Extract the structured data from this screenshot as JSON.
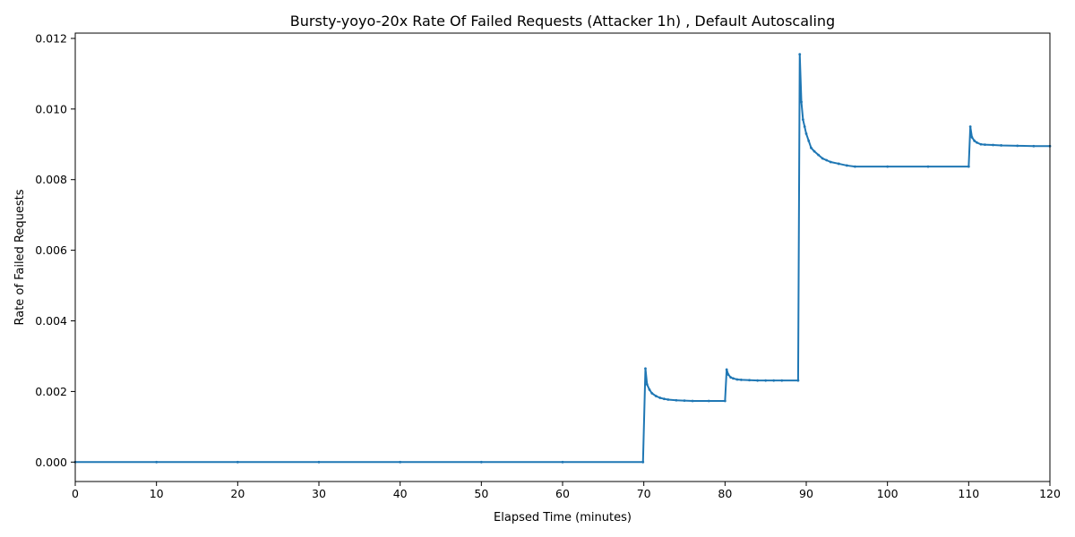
{
  "chart_data": {
    "type": "line",
    "title": "Bursty-yoyo-20x Rate Of Failed Requests (Attacker 1h) , Default Autoscaling",
    "xlabel": "Elapsed Time (minutes)",
    "ylabel": "Rate of Failed Requests",
    "xlim": [
      0,
      120
    ],
    "ylim": [
      -0.00055,
      0.01215
    ],
    "xticks": [
      0,
      10,
      20,
      30,
      40,
      50,
      60,
      70,
      80,
      90,
      100,
      110,
      120
    ],
    "yticks": [
      0.0,
      0.002,
      0.004,
      0.006,
      0.008,
      0.01,
      0.012
    ],
    "xtick_labels": [
      "0",
      "10",
      "20",
      "30",
      "40",
      "50",
      "60",
      "70",
      "80",
      "90",
      "100",
      "110",
      "120"
    ],
    "ytick_labels": [
      "0.000",
      "0.002",
      "0.004",
      "0.006",
      "0.008",
      "0.010",
      "0.012"
    ],
    "grid": false,
    "series": [
      {
        "color": "#1f77b4",
        "x": [
          0,
          10,
          20,
          30,
          40,
          50,
          60,
          69.9,
          70.2,
          70.4,
          70.7,
          71.0,
          71.5,
          72.0,
          72.5,
          73.0,
          74.0,
          75.0,
          76.0,
          78.0,
          80.0,
          80.2,
          80.4,
          80.7,
          81.0,
          81.5,
          82.0,
          83.0,
          84.0,
          85.0,
          86.0,
          87.0,
          89.0,
          89.2,
          89.4,
          89.6,
          89.8,
          90.0,
          90.3,
          90.6,
          91.0,
          91.5,
          92.0,
          92.5,
          93.0,
          94.0,
          95.0,
          96.0,
          100.0,
          105.0,
          110.0,
          110.2,
          110.4,
          110.7,
          111.0,
          111.5,
          112.0,
          113.0,
          114.0,
          116.0,
          118.0,
          120.0
        ],
        "y": [
          0,
          0,
          0,
          0,
          0,
          0,
          0,
          0,
          0.00265,
          0.0022,
          0.00205,
          0.00195,
          0.00187,
          0.00182,
          0.00179,
          0.00177,
          0.00175,
          0.00174,
          0.00173,
          0.00173,
          0.00173,
          0.00262,
          0.00248,
          0.0024,
          0.00237,
          0.00234,
          0.00233,
          0.00232,
          0.00231,
          0.00231,
          0.00231,
          0.00231,
          0.00231,
          0.01155,
          0.0102,
          0.0097,
          0.0095,
          0.0093,
          0.0091,
          0.0089,
          0.0088,
          0.0087,
          0.0086,
          0.00855,
          0.0085,
          0.00845,
          0.0084,
          0.00837,
          0.00837,
          0.00837,
          0.00837,
          0.0095,
          0.0092,
          0.0091,
          0.00905,
          0.009,
          0.00899,
          0.00898,
          0.00897,
          0.00896,
          0.00895,
          0.00895
        ]
      }
    ]
  }
}
